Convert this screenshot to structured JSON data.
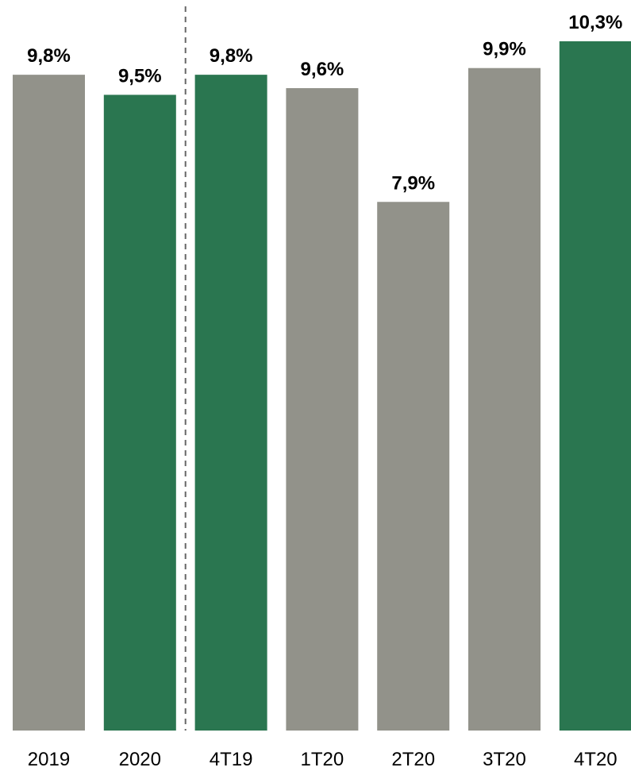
{
  "chart_data": {
    "type": "bar",
    "categories": [
      "2019",
      "2020",
      "4T19",
      "1T20",
      "2T20",
      "3T20",
      "4T20"
    ],
    "values": [
      9.8,
      9.5,
      9.8,
      9.6,
      7.9,
      9.9,
      10.3
    ],
    "data_labels": [
      "9,8%",
      "9,5%",
      "9,8%",
      "9,6%",
      "7,9%",
      "9,9%",
      "10,3%"
    ],
    "bar_colors": [
      "#92928a",
      "#2a7650",
      "#2a7650",
      "#92928a",
      "#92928a",
      "#92928a",
      "#2a7650"
    ],
    "separator_after_index": 1,
    "separator_color": "#666666",
    "title": "",
    "xlabel": "",
    "ylabel": "",
    "ylim": [
      0,
      10.3
    ],
    "grid": false,
    "legend": "none"
  }
}
